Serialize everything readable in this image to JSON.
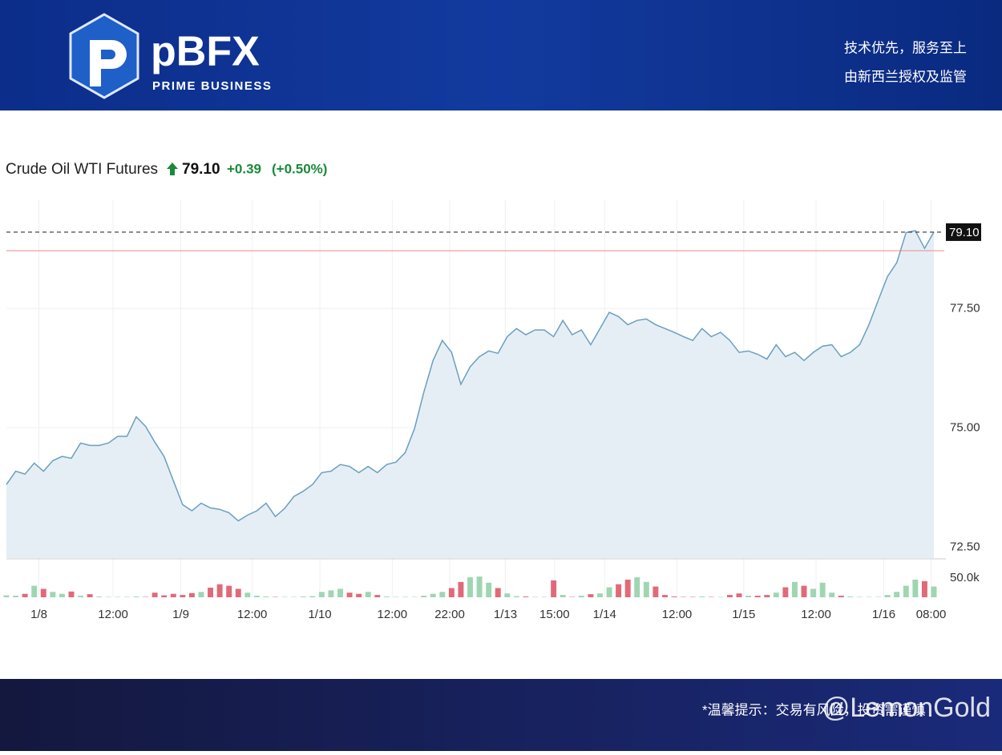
{
  "brand": {
    "name": "pBFX",
    "tagline": "PRIME BUSINESS",
    "slogan1": "技术优先，服务至上",
    "slogan2": "由新西兰授权及监管"
  },
  "footer": {
    "notice": "*温馨提示：交易有风险，投资需谨慎",
    "watermark": "@LemonGold"
  },
  "chart_data": {
    "type": "line",
    "title": "Crude Oil WTI Futures",
    "last_price": {
      "value": 79.1,
      "label": "79.10"
    },
    "change": "+0.39",
    "change_pct": "(+0.50%)",
    "previous_close": 78.71,
    "x": [
      0,
      1,
      2,
      3,
      4,
      5,
      6,
      7,
      8,
      9,
      10,
      11,
      12,
      13,
      14,
      15,
      16,
      17,
      18,
      19,
      20,
      21,
      22,
      23,
      24,
      25,
      26,
      27,
      28,
      29,
      30,
      31,
      32,
      33,
      34,
      35,
      36,
      37,
      38,
      39,
      40,
      41,
      42,
      43,
      44,
      45,
      46,
      47,
      48,
      49,
      50,
      51,
      52,
      53,
      54,
      55,
      56,
      57,
      58,
      59,
      60,
      61,
      62,
      63,
      64,
      65,
      66,
      67,
      68,
      69,
      70,
      71,
      72,
      73,
      74,
      75,
      76,
      77,
      78,
      79,
      80,
      81,
      82,
      83,
      84,
      85,
      86,
      87,
      88,
      89,
      90,
      91,
      92,
      93,
      94,
      95,
      96,
      97,
      98,
      99,
      100
    ],
    "series": [
      {
        "color": "#6a9fbf",
        "fill": "#e6eef5",
        "values": [
          73.81,
          74.09,
          74.03,
          74.26,
          74.09,
          74.31,
          74.4,
          74.36,
          74.68,
          74.63,
          74.63,
          74.68,
          74.82,
          74.82,
          75.23,
          75.03,
          74.7,
          74.4,
          73.89,
          73.39,
          73.26,
          73.42,
          73.32,
          73.29,
          73.22,
          73.05,
          73.17,
          73.26,
          73.42,
          73.14,
          73.31,
          73.56,
          73.67,
          73.81,
          74.06,
          74.09,
          74.23,
          74.19,
          74.06,
          74.19,
          74.06,
          74.23,
          74.28,
          74.48,
          74.98,
          75.74,
          76.41,
          76.83,
          76.58,
          75.91,
          76.28,
          76.49,
          76.61,
          76.56,
          76.91,
          77.08,
          76.95,
          77.05,
          77.05,
          76.91,
          77.25,
          76.95,
          77.05,
          76.74,
          77.08,
          77.42,
          77.33,
          77.16,
          77.25,
          77.28,
          77.16,
          77.08,
          77.0,
          76.91,
          76.83,
          77.08,
          76.91,
          77.0,
          76.83,
          76.58,
          76.61,
          76.54,
          76.44,
          76.74,
          76.49,
          76.58,
          76.41,
          76.58,
          76.71,
          76.74,
          76.49,
          76.58,
          76.74,
          77.16,
          77.67,
          78.17,
          78.46,
          79.09,
          79.13,
          78.76,
          79.1
        ]
      }
    ],
    "volume": {
      "up_color": "#9fd6b2",
      "down_color": "#e06a78",
      "values": [
        5000,
        4000,
        9000,
        30000,
        22000,
        14000,
        9000,
        15000,
        4000,
        8000,
        2000,
        1000,
        1000,
        1000,
        2000,
        1000,
        12000,
        5000,
        9000,
        6000,
        11000,
        14000,
        25000,
        34000,
        30000,
        22000,
        12000,
        4000,
        2000,
        1000,
        1000,
        1000,
        2000,
        3000,
        14000,
        18000,
        22000,
        12000,
        9000,
        14000,
        6000,
        2000,
        1000,
        1000,
        1000,
        4000,
        9000,
        14000,
        24000,
        40000,
        52000,
        54000,
        38000,
        24000,
        10000,
        3000,
        2000,
        1000,
        1000,
        44000,
        6000,
        1000,
        4000,
        8000,
        10000,
        26000,
        34000,
        46000,
        52000,
        40000,
        28000,
        6000,
        2000,
        1000,
        1000,
        2000,
        1000,
        1000,
        6000,
        10000,
        4000,
        4000,
        6000,
        12000,
        26000,
        40000,
        30000,
        22000,
        38000,
        12000,
        4000,
        2000,
        1000,
        1000,
        1000,
        6000,
        14000,
        30000,
        46000,
        42000,
        28000
      ],
      "ylim": [
        0,
        96000
      ],
      "yticks": [
        {
          "value": 50000,
          "label": "50.0k"
        }
      ]
    },
    "xlim": [
      0,
      100
    ],
    "xticks": [
      {
        "value": 3.5,
        "label": "1/8"
      },
      {
        "value": 11.5,
        "label": "12:00"
      },
      {
        "value": 18.8,
        "label": "1/9"
      },
      {
        "value": 26.5,
        "label": "12:00"
      },
      {
        "value": 33.8,
        "label": "1/10"
      },
      {
        "value": 41.6,
        "label": "12:00"
      },
      {
        "value": 47.8,
        "label": "22:00"
      },
      {
        "value": 53.8,
        "label": "1/13"
      },
      {
        "value": 59.1,
        "label": "15:00"
      },
      {
        "value": 64.5,
        "label": "1/14"
      },
      {
        "value": 72.3,
        "label": "12:00"
      },
      {
        "value": 79.5,
        "label": "1/15"
      },
      {
        "value": 87.3,
        "label": "12:00"
      },
      {
        "value": 94.6,
        "label": "1/16"
      },
      {
        "value": 99.7,
        "label": "08:00"
      }
    ],
    "ylim": [
      72.27,
      79.77
    ],
    "yticks": [
      {
        "value": 72.5,
        "label": "72.50"
      },
      {
        "value": 75,
        "label": "75.00"
      },
      {
        "value": 77.5,
        "label": "77.50"
      }
    ],
    "grid": true
  }
}
